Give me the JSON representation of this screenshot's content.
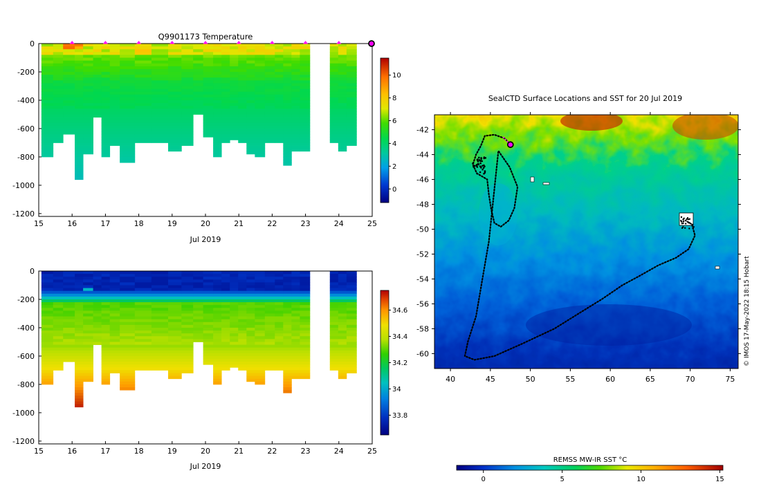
{
  "chart_data": [
    {
      "type": "heatmap",
      "title": "Q9901173  Temperature",
      "xlabel": "Jul 2019",
      "ylabel": "",
      "xlim": [
        15,
        25
      ],
      "ylim": [
        -1220,
        0
      ],
      "x_ticks": [
        "15",
        "16",
        "17",
        "18",
        "19",
        "20",
        "21",
        "22",
        "23",
        "24",
        "25"
      ],
      "y_ticks": [
        "0",
        "-200",
        "-400",
        "-600",
        "-800",
        "-1000",
        "-1200"
      ],
      "colorbar": {
        "ticks": [
          "0",
          "2",
          "4",
          "6",
          "8",
          "10"
        ],
        "range": [
          -1.2,
          11.5
        ]
      },
      "marker_days": [
        16,
        17,
        18,
        19,
        20,
        21,
        22,
        23,
        24
      ],
      "current_marker_day": 25,
      "profiles": [
        {
          "day": 15.2,
          "bottom": -790
        },
        {
          "day": 15.55,
          "bottom": -700
        },
        {
          "day": 15.85,
          "bottom": -630
        },
        {
          "day": 16.2,
          "bottom": -960
        },
        {
          "day": 16.45,
          "bottom": -780
        },
        {
          "day": 16.75,
          "bottom": -520
        },
        {
          "day": 17.0,
          "bottom": -800
        },
        {
          "day": 17.25,
          "bottom": -720
        },
        {
          "day": 17.55,
          "bottom": -830
        },
        {
          "day": 18.0,
          "bottom": -700
        },
        {
          "day": 18.5,
          "bottom": -700
        },
        {
          "day": 19.0,
          "bottom": -760
        },
        {
          "day": 19.4,
          "bottom": -720
        },
        {
          "day": 19.75,
          "bottom": -500
        },
        {
          "day": 20.05,
          "bottom": -650
        },
        {
          "day": 20.35,
          "bottom": -800
        },
        {
          "day": 20.6,
          "bottom": -700
        },
        {
          "day": 20.85,
          "bottom": -680
        },
        {
          "day": 21.1,
          "bottom": -700
        },
        {
          "day": 21.35,
          "bottom": -780
        },
        {
          "day": 21.6,
          "bottom": -790
        },
        {
          "day": 21.9,
          "bottom": -690
        },
        {
          "day": 22.2,
          "bottom": -700
        },
        {
          "day": 22.45,
          "bottom": -860
        },
        {
          "day": 22.7,
          "bottom": -750
        },
        {
          "day": 22.95,
          "bottom": -750
        },
        {
          "day": 23.85,
          "bottom": -700
        },
        {
          "day": 24.1,
          "bottom": -760
        },
        {
          "day": 24.35,
          "bottom": -720
        }
      ]
    },
    {
      "type": "heatmap",
      "title": "",
      "xlabel": "Jul 2019",
      "ylabel": "",
      "xlim": [
        15,
        25
      ],
      "ylim": [
        -1220,
        0
      ],
      "x_ticks": [
        "15",
        "16",
        "17",
        "18",
        "19",
        "20",
        "21",
        "22",
        "23",
        "24",
        "25"
      ],
      "y_ticks": [
        "0",
        "-200",
        "-400",
        "-600",
        "-800",
        "-1000",
        "-1200"
      ],
      "colorbar": {
        "ticks": [
          "33.8",
          "34",
          "34.2",
          "34.4",
          "34.6"
        ],
        "range": [
          33.65,
          34.75
        ]
      }
    },
    {
      "type": "heatmap",
      "title": "SealCTD Surface Locations and SST for 20 Jul 2019",
      "xlabel": "",
      "ylabel": "",
      "xlim": [
        38,
        76
      ],
      "ylim": [
        -61.2,
        -40.8
      ],
      "x_ticks": [
        "40",
        "45",
        "50",
        "55",
        "60",
        "65",
        "70",
        "75"
      ],
      "y_ticks": [
        "-42",
        "-44",
        "-46",
        "-48",
        "-50",
        "-52",
        "-54",
        "-56",
        "-58",
        "-60"
      ],
      "colorbar": {
        "label": "REMSS MW-IR SST °C",
        "ticks": [
          "0",
          "5",
          "10",
          "15"
        ],
        "range": [
          -1.7,
          15.2
        ]
      },
      "track": [
        [
          47.5,
          -43.2
        ],
        [
          46.8,
          -42.7
        ],
        [
          45.5,
          -42.4
        ],
        [
          44.3,
          -42.5
        ],
        [
          43.8,
          -43.3
        ],
        [
          43.2,
          -44.0
        ],
        [
          42.8,
          -44.8
        ],
        [
          43.3,
          -45.5
        ],
        [
          44.6,
          -46.0
        ],
        [
          44.8,
          -47.2
        ],
        [
          45.1,
          -48.4
        ],
        [
          45.5,
          -49.5
        ],
        [
          46.3,
          -49.8
        ],
        [
          47.3,
          -49.3
        ],
        [
          48.0,
          -48.3
        ],
        [
          48.4,
          -46.6
        ],
        [
          47.4,
          -45.0
        ],
        [
          46.0,
          -43.7
        ],
        [
          45.3,
          -48.0
        ],
        [
          44.8,
          -51.0
        ],
        [
          44.0,
          -54.0
        ],
        [
          43.2,
          -57.0
        ],
        [
          42.2,
          -59.0
        ],
        [
          41.8,
          -60.2
        ],
        [
          43.0,
          -60.5
        ],
        [
          45.5,
          -60.2
        ],
        [
          49.0,
          -59.2
        ],
        [
          53.0,
          -58.0
        ],
        [
          56.0,
          -56.8
        ],
        [
          59.0,
          -55.6
        ],
        [
          61.5,
          -54.5
        ],
        [
          63.8,
          -53.7
        ],
        [
          66.0,
          -52.9
        ],
        [
          68.2,
          -52.3
        ],
        [
          69.8,
          -51.6
        ],
        [
          70.6,
          -50.5
        ],
        [
          70.2,
          -49.6
        ],
        [
          69.4,
          -49.3
        ]
      ],
      "current_position": [
        47.5,
        -43.2
      ]
    }
  ],
  "credit": "© IMOS 17-May-2022 18:15 Hobart"
}
